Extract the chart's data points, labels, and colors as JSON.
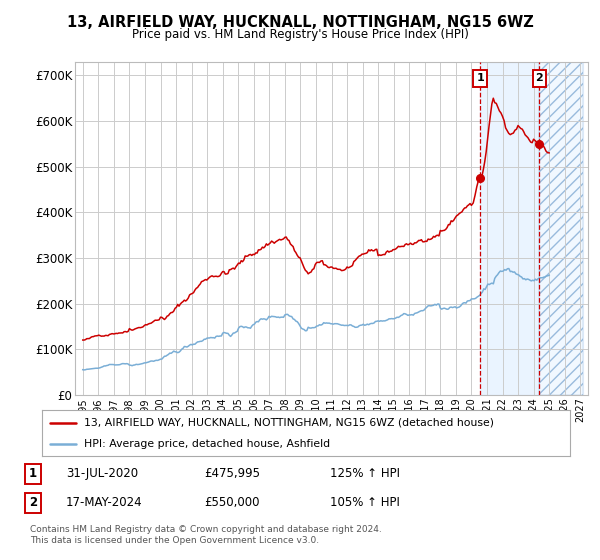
{
  "title": "13, AIRFIELD WAY, HUCKNALL, NOTTINGHAM, NG15 6WZ",
  "subtitle": "Price paid vs. HM Land Registry's House Price Index (HPI)",
  "ylim": [
    0,
    730000
  ],
  "yticks": [
    0,
    100000,
    200000,
    300000,
    400000,
    500000,
    600000,
    700000
  ],
  "ytick_labels": [
    "£0",
    "£100K",
    "£200K",
    "£300K",
    "£400K",
    "£500K",
    "£600K",
    "£700K"
  ],
  "line1_color": "#cc0000",
  "line2_color": "#7aaed6",
  "marker1_date_x": 2020.58,
  "marker1_price": 475995,
  "marker2_date_x": 2024.38,
  "marker2_price": 550000,
  "shade_start": 2020.58,
  "shade_mid": 2024.38,
  "shade_end": 2027.2,
  "legend1_label": "13, AIRFIELD WAY, HUCKNALL, NOTTINGHAM, NG15 6WZ (detached house)",
  "legend2_label": "HPI: Average price, detached house, Ashfield",
  "annotation1_date": "31-JUL-2020",
  "annotation1_price": "£475,995",
  "annotation1_hpi": "125% ↑ HPI",
  "annotation2_date": "17-MAY-2024",
  "annotation2_price": "£550,000",
  "annotation2_hpi": "105% ↑ HPI",
  "footer": "Contains HM Land Registry data © Crown copyright and database right 2024.\nThis data is licensed under the Open Government Licence v3.0.",
  "background_color": "#ffffff",
  "grid_color": "#cccccc",
  "shade_color": "#ddeeff",
  "xlim_left": 1994.5,
  "xlim_right": 2027.5
}
